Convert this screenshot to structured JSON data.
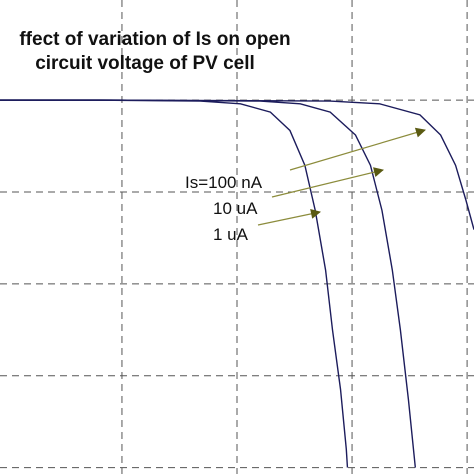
{
  "chart_data": {
    "type": "line",
    "title": [
      "ffect of variation of Is on open",
      "circuit voltage of PV cell"
    ],
    "annotations": [
      "Is=100 nA",
      "10 uA",
      "1 uA"
    ],
    "xlim": [
      -0.06,
      4.06
    ],
    "ylim": [
      -0.07,
      5.09
    ],
    "xticks": [
      1,
      2,
      3,
      4
    ],
    "yticks": [
      0,
      1,
      2,
      3,
      4
    ],
    "grid": true,
    "series": [
      {
        "color": "#1c1c5c",
        "x": [
          -0.06,
          0.81,
          1.68,
          2.03,
          2.29,
          2.46,
          2.59,
          2.68,
          2.77,
          2.83,
          2.9,
          2.95,
          2.96
        ],
        "values": [
          4,
          4,
          3.99,
          3.96,
          3.87,
          3.67,
          3.29,
          2.8,
          2.15,
          1.5,
          0.85,
          0.2,
          0
        ]
      },
      {
        "color": "#1c1c5c",
        "x": [
          -0.06,
          0.9,
          2.2,
          2.55,
          2.81,
          3.03,
          3.16,
          3.26,
          3.35,
          3.42,
          3.49,
          3.55
        ],
        "values": [
          4,
          4,
          3.99,
          3.96,
          3.87,
          3.62,
          3.29,
          2.8,
          2.15,
          1.5,
          0.74,
          0
        ]
      },
      {
        "color": "#1c1c5c",
        "x": [
          -0.06,
          0.98,
          2.81,
          3.24,
          3.59,
          3.77,
          3.9,
          3.99,
          4.06
        ],
        "values": [
          4,
          4,
          3.99,
          3.96,
          3.84,
          3.62,
          3.29,
          2.91,
          2.59
        ]
      }
    ]
  }
}
